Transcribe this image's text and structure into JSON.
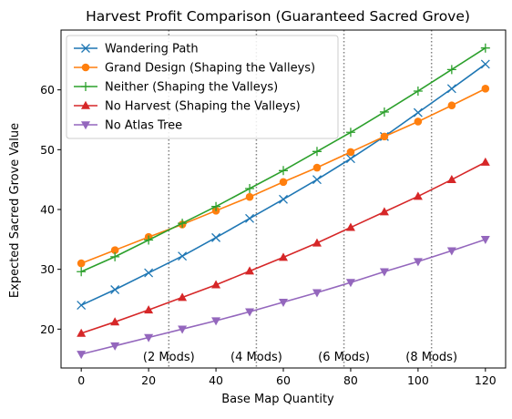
{
  "chart_data": {
    "type": "line",
    "title": "Harvest Profit Comparison (Guaranteed Sacred Grove)",
    "xlabel": "Base Map Quantity",
    "ylabel": "Expected Sacred Grove Value",
    "xlim": [
      -6,
      126
    ],
    "ylim": [
      13.5,
      70.0
    ],
    "xticks": [
      0,
      20,
      40,
      60,
      80,
      100,
      120
    ],
    "yticks": [
      20,
      30,
      40,
      50,
      60
    ],
    "grid": false,
    "legend_position": "upper-left",
    "x": [
      0,
      10,
      20,
      30,
      40,
      50,
      60,
      70,
      80,
      90,
      100,
      110,
      120
    ],
    "series": [
      {
        "name": "Wandering Path",
        "color": "#1f77b4",
        "marker": "x",
        "values": [
          24.0,
          26.6,
          29.4,
          32.2,
          35.3,
          38.5,
          41.7,
          45.0,
          48.5,
          52.2,
          56.2,
          60.2,
          64.3
        ]
      },
      {
        "name": "Grand Design (Shaping the Valleys)",
        "color": "#ff7f0e",
        "marker": "o",
        "values": [
          31.0,
          33.2,
          35.4,
          37.5,
          39.8,
          42.1,
          44.6,
          47.0,
          49.6,
          52.2,
          54.7,
          57.4,
          60.2
        ]
      },
      {
        "name": "Neither (Shaping the Valleys)",
        "color": "#2ca02c",
        "marker": "+",
        "values": [
          29.6,
          32.1,
          34.9,
          37.7,
          40.5,
          43.5,
          46.5,
          49.7,
          52.9,
          56.3,
          59.8,
          63.4,
          67.0
        ]
      },
      {
        "name": "No Harvest (Shaping the Valleys)",
        "color": "#d62728",
        "marker": "^",
        "values": [
          19.3,
          21.2,
          23.2,
          25.3,
          27.4,
          29.7,
          32.0,
          34.4,
          37.0,
          39.6,
          42.2,
          45.0,
          47.9
        ]
      },
      {
        "name": "No Atlas Tree",
        "color": "#9467bd",
        "marker": "v",
        "values": [
          15.8,
          17.2,
          18.6,
          20.0,
          21.4,
          22.9,
          24.5,
          26.1,
          27.8,
          29.6,
          31.3,
          33.1,
          35.0
        ]
      }
    ],
    "vlines": [
      {
        "x": 26,
        "label": "(2 Mods)"
      },
      {
        "x": 52,
        "label": "(4 Mods)"
      },
      {
        "x": 78,
        "label": "(6 Mods)"
      },
      {
        "x": 104,
        "label": "(8 Mods)"
      }
    ],
    "vline_label_y": 15.5,
    "vline_color": "#808080"
  }
}
